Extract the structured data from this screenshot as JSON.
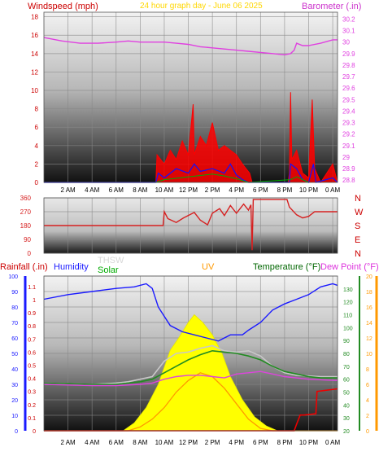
{
  "header": {
    "left_label": "Windspeed (mph)",
    "center_label": "24 hour graph day - June 06 2025",
    "right_label": "Barometer (.in)"
  },
  "time_ticks": [
    "2 AM",
    "4 AM",
    "6 AM",
    "8 AM",
    "10 AM",
    "12 PM",
    "2 PM",
    "4 PM",
    "6 PM",
    "8 PM",
    "10 PM",
    "0 AM"
  ],
  "colors": {
    "windspeed_axis": "#cc0000",
    "barometer": "#e040e0",
    "wind_gust": "#ff0000",
    "wind_avg": "#1010ff",
    "wind_small": "#00aa00",
    "direction_line": "#d62020",
    "rainfall": "#cc0000",
    "humidity": "#1a1aff",
    "thsw": "#c8c8c8",
    "solar": "#ffff00",
    "uv": "#ff9900",
    "temperature": "#228b22",
    "dew_point": "#dd44dd",
    "rain_cumulative": "#ee0000"
  },
  "chart_data": [
    {
      "type": "line",
      "panel": "wind-barometer",
      "x_unit": "hour of day",
      "xlim": [
        0,
        24.4
      ],
      "y_left": {
        "label": "Windspeed (mph)",
        "lim": [
          0,
          18.5
        ],
        "ticks": [
          0,
          2,
          4,
          6,
          8,
          10,
          12,
          14,
          16,
          18
        ]
      },
      "y_right": {
        "label": "Barometer (.in)",
        "lim": [
          28.78,
          30.26
        ],
        "ticks": [
          "28.8",
          "28.9",
          "29",
          "29.1",
          "29.2",
          "29.3",
          "29.4",
          "29.5",
          "29.6",
          "29.7",
          "29.8",
          "29.9",
          "30",
          "30.1",
          "30.2"
        ]
      },
      "barometer_points": [
        [
          0,
          30.04
        ],
        [
          1.5,
          30.01
        ],
        [
          3,
          29.99
        ],
        [
          4.5,
          29.99
        ],
        [
          6,
          30
        ],
        [
          7,
          30.01
        ],
        [
          8,
          30
        ],
        [
          9,
          30
        ],
        [
          10,
          30
        ],
        [
          11,
          29.99
        ],
        [
          12,
          29.98
        ],
        [
          13,
          29.96
        ],
        [
          14,
          29.95
        ],
        [
          15,
          29.94
        ],
        [
          16,
          29.93
        ],
        [
          17,
          29.92
        ],
        [
          18,
          29.91
        ],
        [
          19,
          29.9
        ],
        [
          20,
          29.89
        ],
        [
          20.5,
          29.9
        ],
        [
          20.8,
          29.93
        ],
        [
          21,
          29.99
        ],
        [
          21.5,
          29.97
        ],
        [
          22,
          29.97
        ],
        [
          23,
          29.99
        ],
        [
          24,
          30.02
        ],
        [
          24.4,
          30.02
        ]
      ],
      "wind_gust_points": [
        [
          0,
          0
        ],
        [
          9.3,
          0
        ],
        [
          9.4,
          3
        ],
        [
          10,
          2
        ],
        [
          10.5,
          3.5
        ],
        [
          11,
          2.5
        ],
        [
          11.5,
          4.5
        ],
        [
          12,
          3
        ],
        [
          12.4,
          8.5
        ],
        [
          12.5,
          3
        ],
        [
          13,
          5
        ],
        [
          13.5,
          4
        ],
        [
          14,
          6.5
        ],
        [
          14.5,
          3.5
        ],
        [
          15,
          4
        ],
        [
          15.5,
          3.5
        ],
        [
          16,
          3
        ],
        [
          16.5,
          2
        ],
        [
          17.1,
          1
        ],
        [
          17.3,
          0
        ],
        [
          20.3,
          0
        ],
        [
          20.4,
          1
        ],
        [
          20.5,
          9.8
        ],
        [
          20.6,
          2.5
        ],
        [
          21,
          3.5
        ],
        [
          21.5,
          1
        ],
        [
          22,
          0.5
        ],
        [
          22.3,
          9
        ],
        [
          22.5,
          1.5
        ],
        [
          23,
          0
        ],
        [
          24,
          2
        ],
        [
          24.4,
          0
        ]
      ],
      "wind_avg_points": [
        [
          0,
          0
        ],
        [
          9.3,
          0
        ],
        [
          9.5,
          1
        ],
        [
          10,
          0.5
        ],
        [
          11,
          1.5
        ],
        [
          12,
          1
        ],
        [
          12.5,
          2
        ],
        [
          13,
          1.2
        ],
        [
          14,
          1.5
        ],
        [
          15,
          1
        ],
        [
          15.5,
          2
        ],
        [
          16,
          0.8
        ],
        [
          16.5,
          0.3
        ],
        [
          17,
          0
        ],
        [
          20.4,
          0
        ],
        [
          20.5,
          2
        ],
        [
          21,
          1.5
        ],
        [
          21.5,
          0.3
        ],
        [
          22,
          0
        ],
        [
          22.4,
          2
        ],
        [
          22.6,
          0
        ],
        [
          24,
          0.5
        ],
        [
          24.4,
          0
        ]
      ],
      "wind_small_points": [
        [
          9.3,
          0
        ],
        [
          10,
          0.3
        ],
        [
          12,
          0.6
        ],
        [
          14,
          0.9
        ],
        [
          15,
          0.7
        ],
        [
          16,
          0.4
        ],
        [
          17,
          0
        ],
        [
          20.5,
          0.3
        ],
        [
          21,
          0.6
        ],
        [
          22,
          0
        ]
      ]
    },
    {
      "type": "line",
      "panel": "wind-direction",
      "y_left": {
        "lim": [
          0,
          360
        ],
        "ticks": [
          0,
          90,
          180,
          270,
          360
        ]
      },
      "y_right_labels": [
        "N",
        "W",
        "S",
        "E",
        "N"
      ],
      "direction_points": [
        [
          0,
          180
        ],
        [
          9.9,
          180
        ],
        [
          10,
          270
        ],
        [
          10.3,
          225
        ],
        [
          11,
          200
        ],
        [
          11.6,
          230
        ],
        [
          12.5,
          265
        ],
        [
          13,
          215
        ],
        [
          13.6,
          185
        ],
        [
          14,
          260
        ],
        [
          14.6,
          290
        ],
        [
          15,
          245
        ],
        [
          15.5,
          310
        ],
        [
          16,
          260
        ],
        [
          16.6,
          320
        ],
        [
          17,
          280
        ],
        [
          17.2,
          315
        ],
        [
          17.3,
          20
        ],
        [
          17.4,
          350
        ],
        [
          20.2,
          350
        ],
        [
          20.4,
          300
        ],
        [
          21,
          250
        ],
        [
          21.5,
          230
        ],
        [
          22,
          240
        ],
        [
          22.5,
          270
        ],
        [
          23,
          270
        ],
        [
          24.4,
          270
        ]
      ]
    },
    {
      "type": "line",
      "panel": "weather-multi",
      "labels": [
        "Rainfall (.in)",
        "Humidity",
        "THSW",
        "Solar",
        "UV",
        "Temperature (°F)",
        "Dew Point (°F)"
      ],
      "y_rain": {
        "lim": [
          0,
          1.18
        ],
        "ticks": [
          "0",
          "0.1",
          "0.2",
          "0.3",
          "0.4",
          "0.5",
          "0.6",
          "0.7",
          "0.8",
          "0.9",
          "1",
          "1.1"
        ]
      },
      "y_humidity": {
        "lim": [
          0,
          100
        ],
        "ticks": [
          0,
          10,
          20,
          30,
          40,
          50,
          60,
          70,
          80,
          90,
          100
        ]
      },
      "y_temp": {
        "lim": [
          20,
          140
        ],
        "ticks": [
          20,
          30,
          40,
          50,
          60,
          70,
          80,
          90,
          100,
          110,
          120,
          130
        ]
      },
      "y_uv": {
        "lim": [
          0,
          20
        ],
        "ticks": [
          0,
          2,
          4,
          6,
          8,
          10,
          12,
          14,
          16,
          18,
          20
        ]
      },
      "humidity_points": [
        [
          0,
          85
        ],
        [
          2,
          88
        ],
        [
          4,
          90
        ],
        [
          6,
          92
        ],
        [
          7.5,
          93
        ],
        [
          8.5,
          95
        ],
        [
          9,
          92
        ],
        [
          9.5,
          80
        ],
        [
          10.5,
          68
        ],
        [
          11.5,
          64
        ],
        [
          12.5,
          62
        ],
        [
          13.5,
          60
        ],
        [
          14.5,
          58
        ],
        [
          15.5,
          62
        ],
        [
          16.5,
          62
        ],
        [
          17,
          65
        ],
        [
          18,
          70
        ],
        [
          19,
          78
        ],
        [
          20,
          82
        ],
        [
          21,
          85
        ],
        [
          22,
          88
        ],
        [
          23,
          93
        ],
        [
          24,
          95
        ],
        [
          24.4,
          94
        ]
      ],
      "thsw_points": [
        [
          0,
          57
        ],
        [
          4,
          56
        ],
        [
          6,
          57
        ],
        [
          7,
          58
        ],
        [
          8,
          60
        ],
        [
          9,
          62
        ],
        [
          10,
          74
        ],
        [
          11,
          80
        ],
        [
          12,
          81
        ],
        [
          13,
          84
        ],
        [
          14,
          86
        ],
        [
          15,
          82
        ],
        [
          16,
          81
        ],
        [
          17,
          82
        ],
        [
          18,
          78
        ],
        [
          19,
          70
        ],
        [
          20,
          65
        ],
        [
          21,
          63
        ],
        [
          23,
          62
        ],
        [
          24.4,
          62
        ]
      ],
      "temperature_points": [
        [
          0,
          57
        ],
        [
          4,
          56
        ],
        [
          6,
          56
        ],
        [
          8,
          58
        ],
        [
          9,
          60
        ],
        [
          10,
          65
        ],
        [
          11,
          70
        ],
        [
          12,
          75
        ],
        [
          13,
          79
        ],
        [
          14,
          82
        ],
        [
          15,
          81
        ],
        [
          16,
          80
        ],
        [
          17,
          78
        ],
        [
          18,
          75
        ],
        [
          19,
          70
        ],
        [
          20,
          66
        ],
        [
          21,
          64
        ],
        [
          22,
          62
        ],
        [
          23,
          61
        ],
        [
          24.4,
          61
        ]
      ],
      "dew_point_points": [
        [
          0,
          56
        ],
        [
          4,
          55
        ],
        [
          6,
          55
        ],
        [
          8,
          56
        ],
        [
          9,
          57
        ],
        [
          10,
          60
        ],
        [
          11,
          62
        ],
        [
          12,
          63
        ],
        [
          13,
          63
        ],
        [
          14,
          62
        ],
        [
          15,
          61
        ],
        [
          16,
          64
        ],
        [
          17,
          65
        ],
        [
          18,
          66
        ],
        [
          19,
          64
        ],
        [
          20,
          62
        ],
        [
          22,
          60
        ],
        [
          24.4,
          59
        ]
      ],
      "solar_points": [
        [
          0,
          0
        ],
        [
          6.6,
          0
        ],
        [
          7.5,
          5
        ],
        [
          8.5,
          15
        ],
        [
          9.5,
          30
        ],
        [
          10.5,
          52
        ],
        [
          11.2,
          60
        ],
        [
          12,
          70
        ],
        [
          12.5,
          75
        ],
        [
          13.2,
          70
        ],
        [
          14,
          62
        ],
        [
          14.8,
          50
        ],
        [
          15.5,
          35
        ],
        [
          16.5,
          20
        ],
        [
          17.5,
          9
        ],
        [
          18.5,
          3
        ],
        [
          19.4,
          0
        ],
        [
          24.4,
          0
        ]
      ],
      "uv_points": [
        [
          0,
          0
        ],
        [
          7,
          0
        ],
        [
          8,
          0.5
        ],
        [
          9,
          1.5
        ],
        [
          10,
          3
        ],
        [
          11,
          5
        ],
        [
          12,
          6.5
        ],
        [
          13,
          7.5
        ],
        [
          14,
          7
        ],
        [
          15,
          5.5
        ],
        [
          16,
          3.5
        ],
        [
          17,
          1.5
        ],
        [
          18,
          0.3
        ],
        [
          19,
          0
        ],
        [
          24.4,
          0
        ]
      ],
      "rain_points": [
        [
          0,
          0
        ],
        [
          20.8,
          0
        ],
        [
          21,
          0.05
        ],
        [
          21.3,
          0.12
        ],
        [
          21.6,
          0.12
        ],
        [
          22.6,
          0.13
        ],
        [
          22.7,
          0.3
        ],
        [
          24.4,
          0.32
        ]
      ]
    }
  ]
}
